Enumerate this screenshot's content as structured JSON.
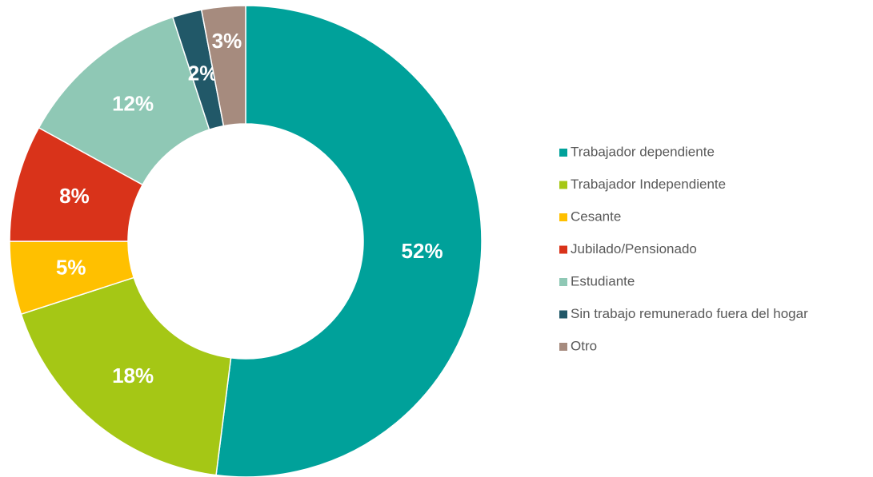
{
  "chart_data": {
    "type": "donut",
    "categories": [
      "Trabajador dependiente",
      "Trabajador Independiente",
      "Cesante",
      "Jubilado/Pensionado",
      "Estudiante",
      "Sin trabajo remunerado fuera del hogar",
      "Otro"
    ],
    "values": [
      52,
      18,
      5,
      8,
      12,
      2,
      3
    ],
    "value_labels": [
      "52%",
      "18%",
      "5%",
      "8%",
      "12%",
      "2%",
      "3%"
    ],
    "colors": [
      "#00a19a",
      "#a5c715",
      "#ffc000",
      "#d9331a",
      "#8fc8b5",
      "#215868",
      "#a68b7e"
    ],
    "legend": "right"
  }
}
